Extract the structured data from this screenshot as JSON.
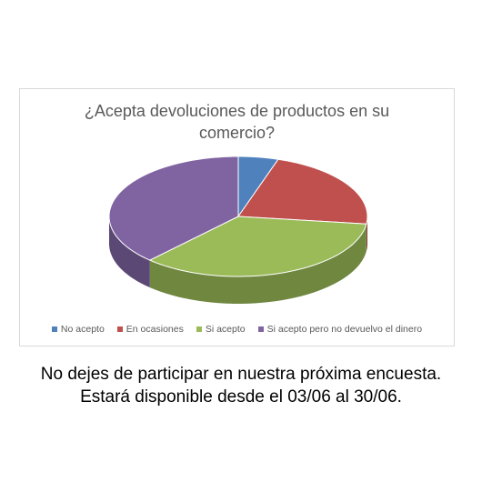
{
  "chart_data": {
    "type": "pie",
    "title": "¿Acepta devoluciones de productos en su comercio?",
    "categories": [
      "No acepto",
      "En ocasiones",
      "Si acepto",
      "Si acepto pero no devuelvo el dinero"
    ],
    "values": [
      5,
      22,
      35,
      38
    ],
    "colors": [
      "#4f81bd",
      "#c0504d",
      "#9bbb59",
      "#8064a2"
    ],
    "style": "3d",
    "legend_position": "bottom"
  },
  "footer": {
    "line1": "No dejes de participar en nuestra próxima encuesta.",
    "line2": "Estará disponible desde el 03/06 al 30/06."
  }
}
